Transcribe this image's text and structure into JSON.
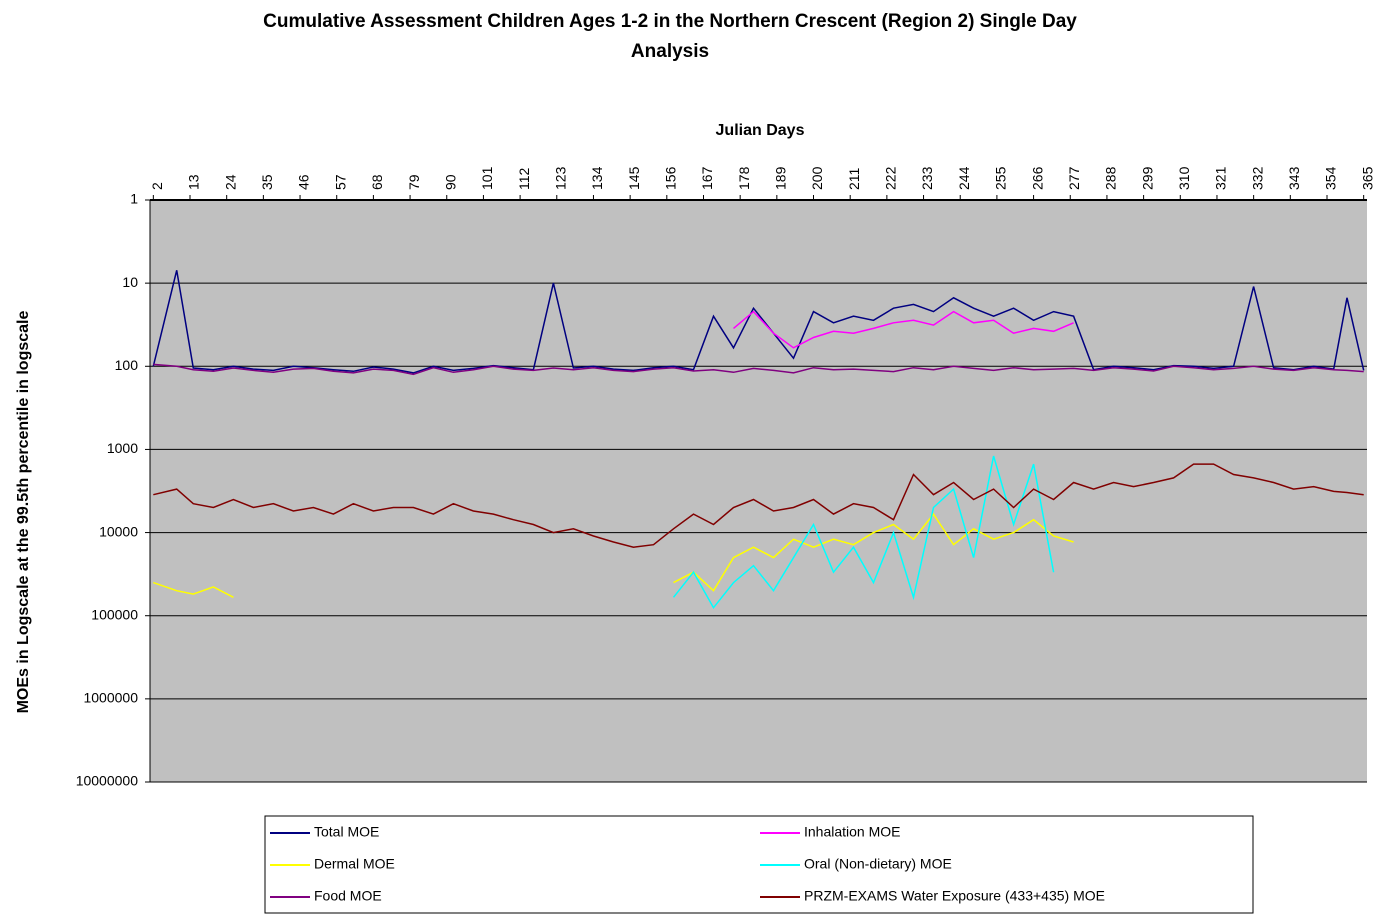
{
  "chart_data": {
    "type": "line",
    "title": "Cumulative Assessment Children Ages 1-2 in the Northern Crescent (Region 2) Single Day Analysis",
    "x_label": "Julian Days",
    "y_label": "MOEs in Logscale at the 99.5th percentile in logscale",
    "x": [
      2,
      9,
      14,
      20,
      26,
      32,
      38,
      44,
      50,
      56,
      62,
      68,
      74,
      80,
      86,
      92,
      98,
      104,
      110,
      116,
      122,
      128,
      134,
      140,
      146,
      152,
      158,
      164,
      170,
      176,
      182,
      188,
      194,
      200,
      206,
      212,
      218,
      224,
      230,
      236,
      242,
      248,
      254,
      260,
      266,
      272,
      278,
      284,
      290,
      296,
      302,
      308,
      314,
      320,
      326,
      332,
      338,
      344,
      350,
      356,
      360,
      365
    ],
    "xlim": [
      1,
      366
    ],
    "xticks": [
      2,
      13,
      24,
      35,
      46,
      57,
      68,
      79,
      90,
      101,
      112,
      123,
      134,
      145,
      156,
      167,
      178,
      189,
      200,
      211,
      222,
      233,
      244,
      255,
      266,
      277,
      288,
      299,
      310,
      321,
      332,
      343,
      354,
      365
    ],
    "x_axis_position": "top",
    "ylim": [
      1,
      10000000
    ],
    "yticks": [
      1,
      10,
      100,
      1000,
      10000,
      100000,
      1000000,
      10000000
    ],
    "y_scale": "log",
    "y_inverted": true,
    "grid": true,
    "plot_background": "#c0c0c0",
    "legend_position": "bottom",
    "series": [
      {
        "name": "Total MOE",
        "color": "#000080",
        "values": [
          100,
          7,
          105,
          110,
          100,
          108,
          112,
          100,
          104,
          110,
          115,
          102,
          108,
          120,
          100,
          112,
          106,
          98,
          104,
          110,
          10,
          105,
          100,
          108,
          112,
          104,
          100,
          110,
          25,
          60,
          20,
          40,
          80,
          22,
          30,
          25,
          28,
          20,
          18,
          22,
          15,
          20,
          25,
          20,
          28,
          22,
          25,
          110,
          100,
          104,
          110,
          98,
          100,
          106,
          100,
          11,
          104,
          110,
          100,
          108,
          15,
          112
        ]
      },
      {
        "name": "Inhalation MOE",
        "color": "#ff00ff",
        "values": [
          null,
          null,
          null,
          null,
          null,
          null,
          null,
          null,
          null,
          null,
          null,
          null,
          null,
          null,
          null,
          null,
          null,
          null,
          null,
          null,
          null,
          null,
          null,
          null,
          null,
          null,
          null,
          null,
          null,
          35,
          22,
          40,
          60,
          45,
          38,
          40,
          35,
          30,
          28,
          32,
          22,
          30,
          28,
          40,
          35,
          38,
          30,
          null,
          null,
          null,
          null,
          null,
          null,
          null,
          null,
          null,
          null,
          null,
          null,
          null,
          null,
          null
        ]
      },
      {
        "name": "Dermal MOE",
        "color": "#ffff00",
        "values": [
          40000,
          50000,
          55000,
          45000,
          60000,
          null,
          null,
          null,
          null,
          null,
          null,
          null,
          null,
          null,
          null,
          null,
          null,
          null,
          null,
          null,
          null,
          null,
          null,
          null,
          null,
          null,
          40000,
          30000,
          50000,
          20000,
          15000,
          20000,
          12000,
          15000,
          12000,
          14000,
          10000,
          8000,
          12000,
          6000,
          14000,
          9000,
          12000,
          10000,
          7000,
          11000,
          13000,
          null,
          null,
          null,
          null,
          null,
          null,
          null,
          null,
          null,
          null,
          null,
          null,
          null,
          null,
          null
        ]
      },
      {
        "name": "Oral (Non-dietary) MOE",
        "color": "#00ffff",
        "values": [
          null,
          null,
          null,
          null,
          null,
          null,
          null,
          null,
          null,
          null,
          null,
          null,
          null,
          null,
          null,
          null,
          null,
          null,
          null,
          null,
          null,
          null,
          null,
          null,
          null,
          null,
          60000,
          30000,
          80000,
          40000,
          25000,
          50000,
          20000,
          8000,
          30000,
          15000,
          40000,
          10000,
          60000,
          5000,
          3000,
          20000,
          1200,
          8000,
          1500,
          30000,
          null,
          null,
          null,
          null,
          null,
          null,
          null,
          null,
          null,
          null,
          null,
          null,
          null,
          null,
          null,
          null
        ]
      },
      {
        "name": "Food MOE",
        "color": "#800080",
        "values": [
          95,
          100,
          110,
          115,
          105,
          112,
          118,
          108,
          106,
          115,
          120,
          108,
          112,
          125,
          104,
          118,
          110,
          100,
          108,
          112,
          105,
          110,
          104,
          112,
          116,
          108,
          104,
          114,
          110,
          118,
          106,
          112,
          120,
          104,
          110,
          108,
          112,
          116,
          104,
          110,
          100,
          106,
          112,
          104,
          110,
          108,
          106,
          112,
          104,
          108,
          114,
          100,
          104,
          110,
          106,
          100,
          108,
          112,
          104,
          110,
          112,
          116
        ]
      },
      {
        "name": "PRZM-EXAMS Water Exposure (433+435) MOE",
        "color": "#800000",
        "values": [
          3500,
          3000,
          4500,
          5000,
          4000,
          5000,
          4500,
          5500,
          5000,
          6000,
          4500,
          5500,
          5000,
          5000,
          6000,
          4500,
          5500,
          6000,
          7000,
          8000,
          10000,
          9000,
          11000,
          13000,
          15000,
          14000,
          9000,
          6000,
          8000,
          5000,
          4000,
          5500,
          5000,
          4000,
          6000,
          4500,
          5000,
          7000,
          2000,
          3500,
          2500,
          4000,
          3000,
          5000,
          3000,
          4000,
          2500,
          3000,
          2500,
          2800,
          2500,
          2200,
          1500,
          1500,
          2000,
          2200,
          2500,
          3000,
          2800,
          3200,
          3300,
          3500
        ]
      }
    ]
  }
}
